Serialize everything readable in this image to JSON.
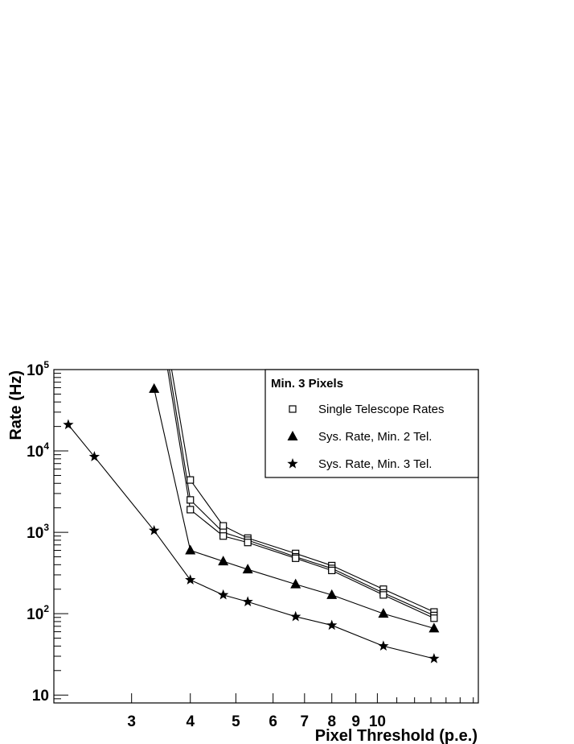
{
  "chart_data": {
    "type": "line",
    "xlabel": "Pixel Threshold (p.e.)",
    "ylabel": "Rate (Hz)",
    "x_scale": "log",
    "y_scale": "log",
    "xlim": [
      2.05,
      16.4
    ],
    "ylim": [
      8,
      100000
    ],
    "x_ticks": [
      {
        "value": 3,
        "label": "3"
      },
      {
        "value": 4,
        "label": "4"
      },
      {
        "value": 5,
        "label": "5"
      },
      {
        "value": 6,
        "label": "6"
      },
      {
        "value": 7,
        "label": "7"
      },
      {
        "value": 8,
        "label": "8"
      },
      {
        "value": 9,
        "label": "9"
      },
      {
        "value": 10,
        "label": "10"
      }
    ],
    "y_ticks": [
      {
        "value": 10,
        "base": "10",
        "exp": ""
      },
      {
        "value": 100,
        "base": "10",
        "exp": "2"
      },
      {
        "value": 1000,
        "base": "10",
        "exp": "3"
      },
      {
        "value": 10000,
        "base": "10",
        "exp": "4"
      },
      {
        "value": 100000,
        "base": "10",
        "exp": "5"
      }
    ],
    "legend": {
      "title": "Min. 3 Pixels",
      "position": "top-right",
      "entries": [
        {
          "label": "Single Telescope Rates",
          "marker": "open-square"
        },
        {
          "label": "Sys. Rate, Min. 2 Tel.",
          "marker": "filled-triangle"
        },
        {
          "label": "Sys. Rate, Min. 3 Tel.",
          "marker": "filled-star"
        }
      ]
    },
    "series": [
      {
        "group": "single-telescope",
        "marker": "open-square",
        "x": [
          4,
          4.7,
          5.3,
          6.7,
          8,
          10.3,
          13.2
        ],
        "y": [
          4400,
          1200,
          850,
          550,
          390,
          200,
          105
        ],
        "line_start": {
          "x": 3.65,
          "y": 100000
        }
      },
      {
        "group": "single-telescope",
        "marker": "open-square",
        "x": [
          4,
          4.7,
          5.3,
          6.7,
          8,
          10.3,
          13.2
        ],
        "y": [
          2500,
          1000,
          800,
          500,
          360,
          180,
          95
        ],
        "line_start": {
          "x": 3.61,
          "y": 100000
        }
      },
      {
        "group": "single-telescope",
        "marker": "open-square",
        "x": [
          4,
          4.7,
          5.3,
          6.7,
          8,
          10.3,
          13.2
        ],
        "y": [
          1900,
          900,
          750,
          480,
          340,
          170,
          88
        ],
        "line_start": {
          "x": 3.58,
          "y": 100000
        }
      },
      {
        "group": "min2",
        "marker": "filled-triangle",
        "x": [
          3.35,
          4,
          4.7,
          5.3,
          6.7,
          8,
          10.3,
          13.2
        ],
        "y": [
          58000,
          600,
          440,
          350,
          230,
          170,
          100,
          66
        ]
      },
      {
        "group": "min3",
        "marker": "filled-star",
        "x": [
          2.2,
          2.5,
          3.35,
          4,
          4.7,
          5.3,
          6.7,
          8,
          10.3,
          13.2
        ],
        "y": [
          21000,
          8500,
          1050,
          260,
          170,
          140,
          92,
          72,
          40,
          28
        ]
      }
    ],
    "colors": {
      "line": "#000000",
      "axes": "#000000",
      "background": "#ffffff"
    }
  }
}
